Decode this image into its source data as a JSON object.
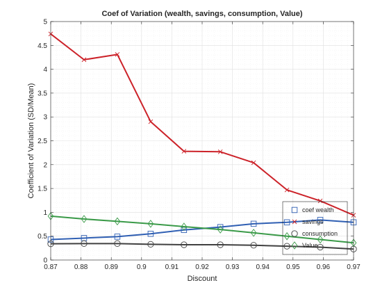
{
  "chart_data": {
    "type": "line",
    "title": "Coef of Variation (wealth, savings, consumption, Value)",
    "xlabel": "Discount",
    "ylabel": "Coefficient of Variation (SD/Mean)",
    "xlim": [
      0.87,
      0.97
    ],
    "ylim": [
      0,
      5
    ],
    "xticks": [
      "0.87",
      "0.88",
      "0.89",
      "0.9",
      "0.91",
      "0.92",
      "0.93",
      "0.94",
      "0.95",
      "0.96",
      "0.97"
    ],
    "yticks": [
      "0",
      "0.5",
      "1",
      "1.5",
      "2",
      "2.5",
      "3",
      "3.5",
      "4",
      "4.5",
      "5"
    ],
    "grid": true,
    "legend_position": "bottom-right",
    "x": [
      0.87,
      0.881,
      0.892,
      0.903,
      0.914,
      0.926,
      0.937,
      0.948,
      0.959,
      0.97
    ],
    "series": [
      {
        "name": "coef wealth",
        "marker": "square",
        "color": "#2f5fb3",
        "values": [
          0.43,
          0.46,
          0.49,
          0.55,
          0.63,
          0.69,
          0.76,
          0.79,
          0.84,
          0.79
        ]
      },
      {
        "name": "savings",
        "marker": "x",
        "color": "#cc2229",
        "values": [
          4.74,
          4.2,
          4.31,
          2.9,
          2.28,
          2.27,
          2.04,
          1.47,
          1.24,
          0.94
        ]
      },
      {
        "name": "consumption",
        "marker": "circle",
        "color": "#404040",
        "values": [
          0.34,
          0.345,
          0.345,
          0.33,
          0.32,
          0.32,
          0.31,
          0.29,
          0.27,
          0.23
        ]
      },
      {
        "name": "Value",
        "marker": "diamond",
        "color": "#3a9a48",
        "values": [
          0.92,
          0.86,
          0.81,
          0.76,
          0.7,
          0.64,
          0.57,
          0.5,
          0.43,
          0.36
        ]
      }
    ]
  }
}
